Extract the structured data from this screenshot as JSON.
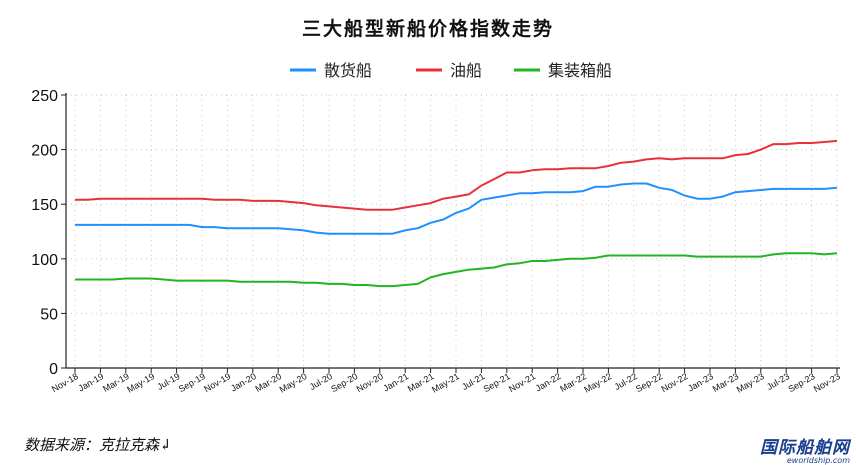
{
  "chart_data": {
    "type": "line",
    "title": "三大船型新船价格指数走势",
    "ylim": [
      0,
      250
    ],
    "yticks": [
      0,
      50,
      100,
      150,
      200,
      250
    ],
    "grid": true,
    "legend_position": "top-center",
    "x": [
      "Nov-18",
      "Dec-18",
      "Jan-19",
      "Feb-19",
      "Mar-19",
      "Apr-19",
      "May-19",
      "Jun-19",
      "Jul-19",
      "Aug-19",
      "Sep-19",
      "Oct-19",
      "Nov-19",
      "Dec-19",
      "Jan-20",
      "Feb-20",
      "Mar-20",
      "Apr-20",
      "May-20",
      "Jun-20",
      "Jul-20",
      "Aug-20",
      "Sep-20",
      "Oct-20",
      "Nov-20",
      "Dec-20",
      "Jan-21",
      "Feb-21",
      "Mar-21",
      "Apr-21",
      "May-21",
      "Jun-21",
      "Jul-21",
      "Aug-21",
      "Sep-21",
      "Oct-21",
      "Nov-21",
      "Dec-21",
      "Jan-22",
      "Feb-22",
      "Mar-22",
      "Apr-22",
      "May-22",
      "Jun-22",
      "Jul-22",
      "Aug-22",
      "Sep-22",
      "Oct-22",
      "Nov-22",
      "Dec-22",
      "Jan-23",
      "Feb-23",
      "Mar-23",
      "Apr-23",
      "May-23",
      "Jun-23",
      "Jul-23",
      "Aug-23",
      "Sep-23",
      "Oct-23",
      "Nov-23"
    ],
    "x_tick_labels": [
      "Nov-18",
      "Jan-19",
      "Mar-19",
      "May-19",
      "Jul-19",
      "Sep-19",
      "Nov-19",
      "Jan-20",
      "Mar-20",
      "May-20",
      "Jul-20",
      "Sep-20",
      "Nov-20",
      "Jan-21",
      "Mar-21",
      "May-21",
      "Jul-21",
      "Sep-21",
      "Nov-21",
      "Jan-22",
      "Mar-22",
      "May-22",
      "Jul-22",
      "Sep-22",
      "Nov-22",
      "Jan-23",
      "Mar-23",
      "May-23",
      "Jul-23",
      "Sep-23",
      "Nov-23"
    ],
    "series": [
      {
        "name": "散货船",
        "color": "#1e90ff",
        "values": [
          131,
          131,
          131,
          131,
          131,
          131,
          131,
          131,
          131,
          131,
          129,
          129,
          128,
          128,
          128,
          128,
          128,
          127,
          126,
          124,
          123,
          123,
          123,
          123,
          123,
          123,
          126,
          128,
          133,
          136,
          142,
          146,
          154,
          156,
          158,
          160,
          160,
          161,
          161,
          161,
          162,
          166,
          166,
          168,
          169,
          169,
          165,
          163,
          158,
          155,
          155,
          157,
          161,
          162,
          163,
          164,
          164,
          164,
          164,
          164,
          165
        ]
      },
      {
        "name": "油船",
        "color": "#e8303a",
        "values": [
          154,
          154,
          155,
          155,
          155,
          155,
          155,
          155,
          155,
          155,
          155,
          154,
          154,
          154,
          153,
          153,
          153,
          152,
          151,
          149,
          148,
          147,
          146,
          145,
          145,
          145,
          147,
          149,
          151,
          155,
          157,
          159,
          167,
          173,
          179,
          179,
          181,
          182,
          182,
          183,
          183,
          183,
          185,
          188,
          189,
          191,
          192,
          191,
          192,
          192,
          192,
          192,
          195,
          196,
          200,
          205,
          205,
          206,
          206,
          207,
          208
        ]
      },
      {
        "name": "集装箱船",
        "color": "#22b522",
        "values": [
          81,
          81,
          81,
          81,
          82,
          82,
          82,
          81,
          80,
          80,
          80,
          80,
          80,
          79,
          79,
          79,
          79,
          79,
          78,
          78,
          77,
          77,
          76,
          76,
          75,
          75,
          76,
          77,
          83,
          86,
          88,
          90,
          91,
          92,
          95,
          96,
          98,
          98,
          99,
          100,
          100,
          101,
          103,
          103,
          103,
          103,
          103,
          103,
          103,
          102,
          102,
          102,
          102,
          102,
          102,
          104,
          105,
          105,
          105,
          104,
          105
        ]
      }
    ]
  },
  "footer": {
    "source": "数据来源：克拉克森↲",
    "logo_text": "国际船舶网",
    "logo_url": "eworldship.com"
  }
}
